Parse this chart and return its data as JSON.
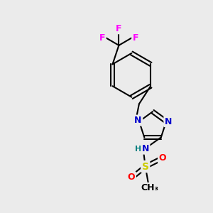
{
  "background_color": "#ebebeb",
  "atom_colors": {
    "C": "#000000",
    "N": "#0000cc",
    "O": "#ff0000",
    "S": "#cccc00",
    "F": "#ff00ff",
    "H": "#008080"
  }
}
